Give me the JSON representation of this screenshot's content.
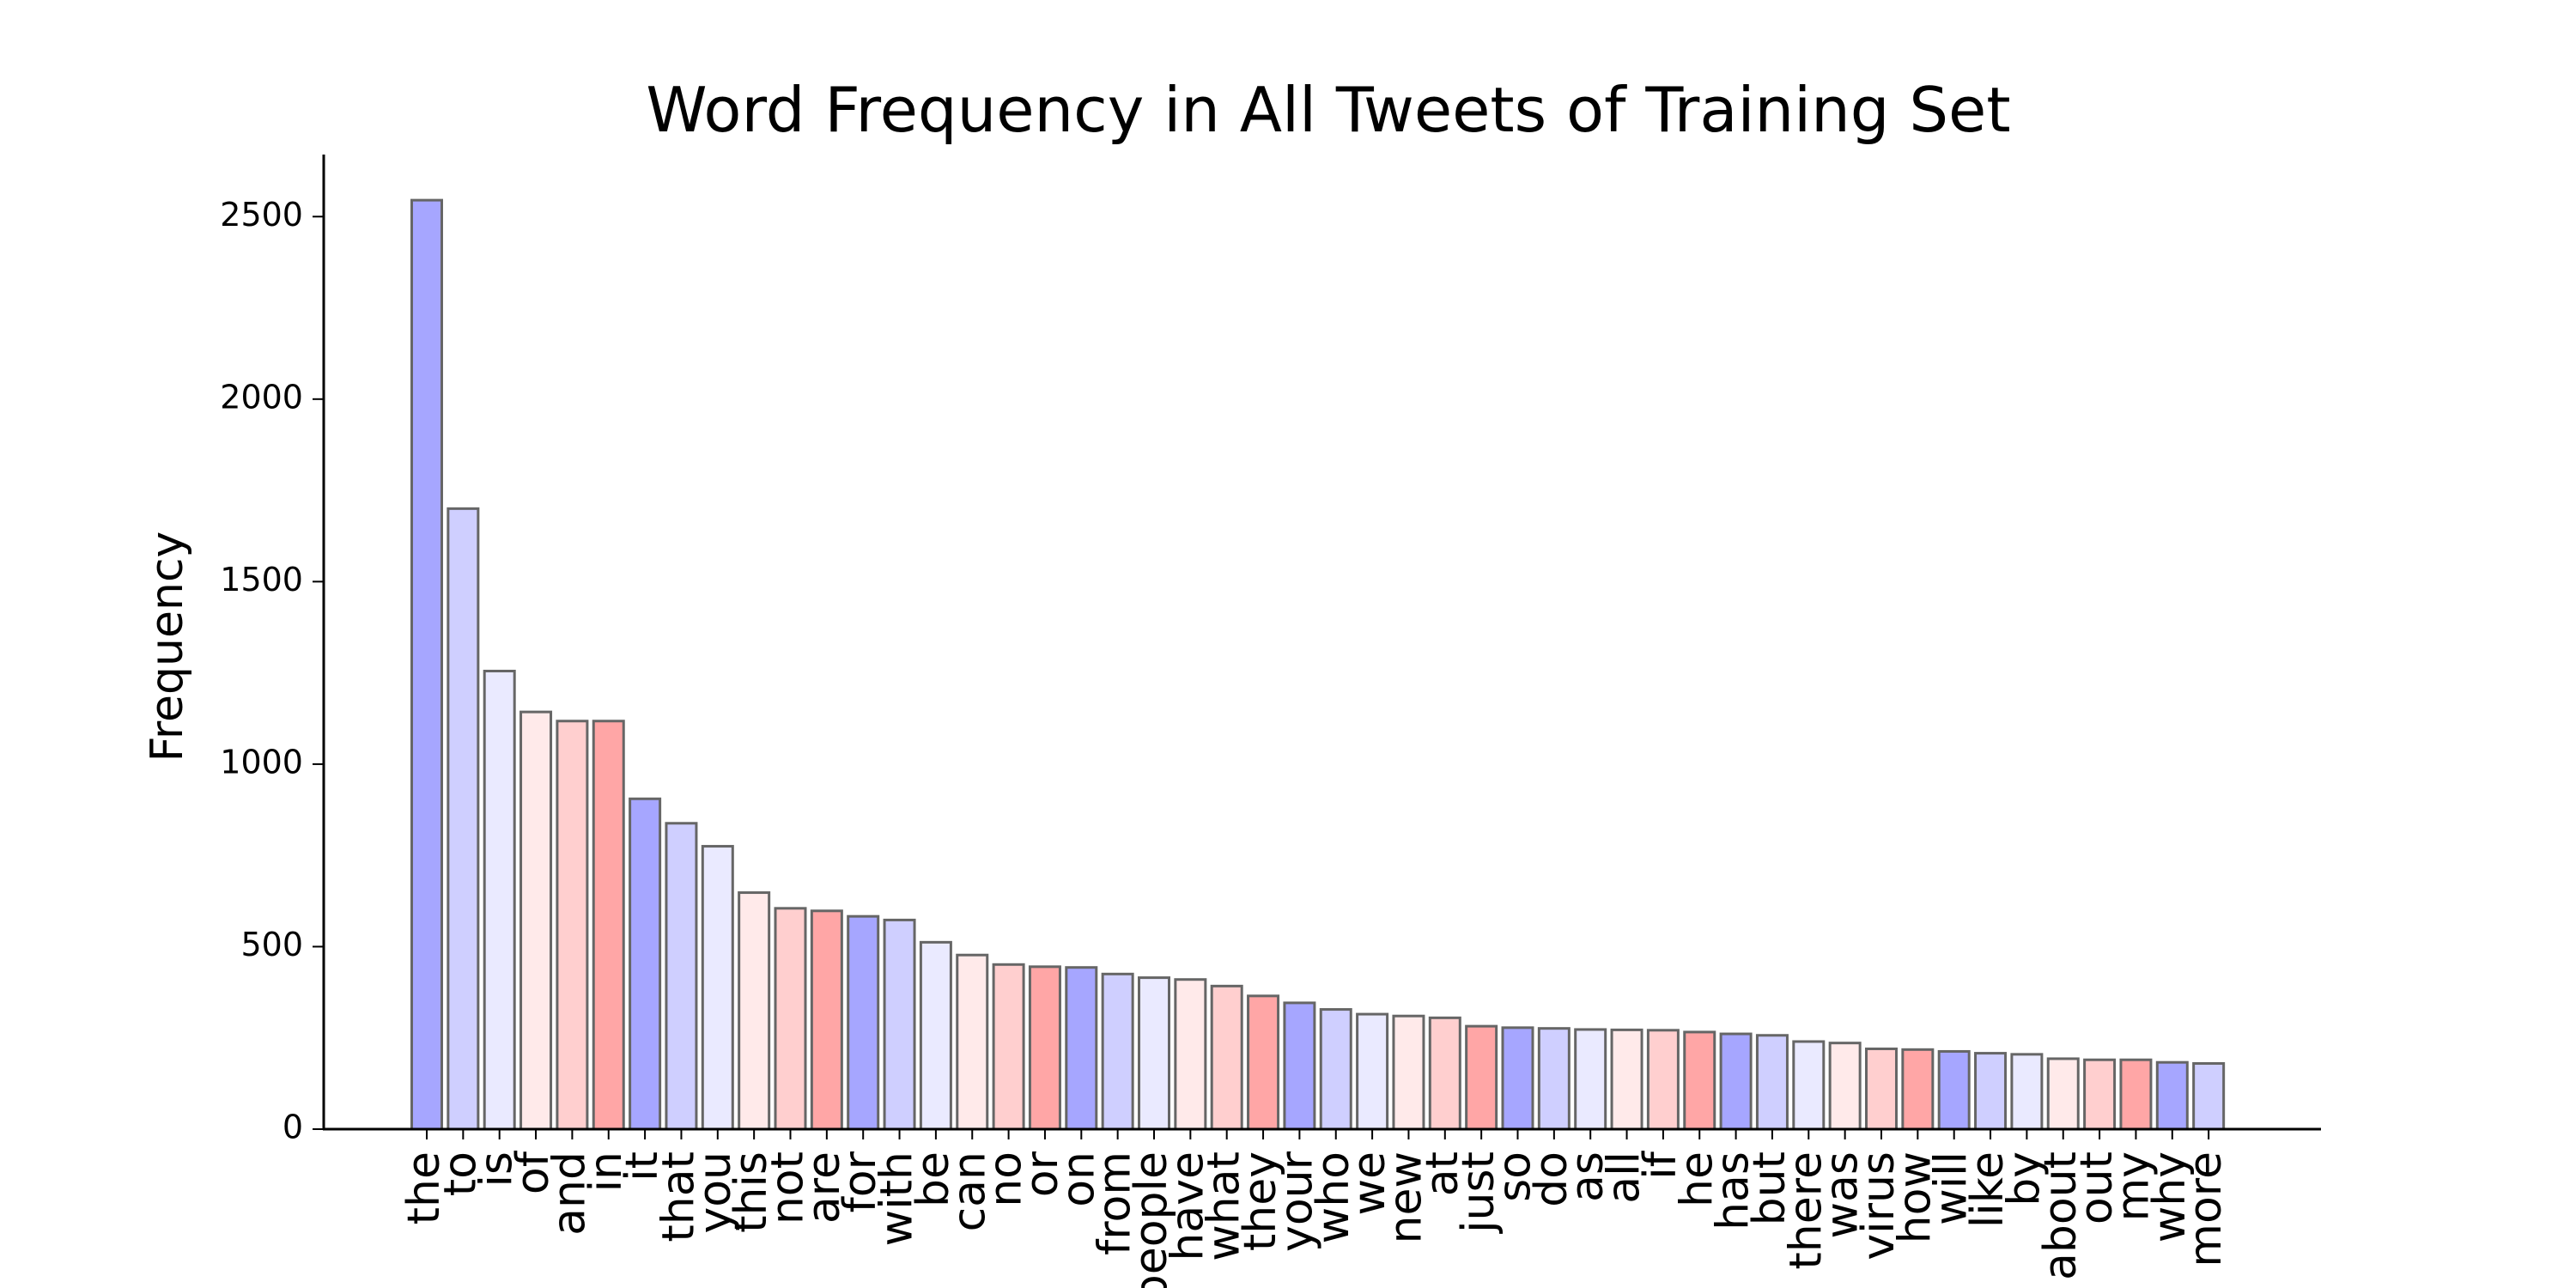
{
  "chart_data": {
    "type": "bar",
    "title": "Word Frequency in All Tweets of Training Set",
    "xlabel": "",
    "ylabel": "Frequency",
    "ylim": [
      0,
      2670
    ],
    "yticks": [
      0,
      500,
      1000,
      1500,
      2000,
      2500
    ],
    "grid": false,
    "legend": "none",
    "bar_edge_color": "#666666",
    "palette": [
      "#a6a6ff",
      "#cfcfff",
      "#eaeaff",
      "#ffeaea",
      "#ffcfcf",
      "#ffa6a6"
    ],
    "categories": [
      "the",
      "to",
      "is",
      "of",
      "and",
      "in",
      "it",
      "that",
      "you",
      "this",
      "not",
      "are",
      "for",
      "with",
      "be",
      "can",
      "no",
      "or",
      "on",
      "from",
      "people",
      "have",
      "what",
      "they",
      "your",
      "who",
      "we",
      "new",
      "at",
      "just",
      "so",
      "do",
      "as",
      "all",
      "if",
      "he",
      "has",
      "but",
      "there",
      "was",
      "virus",
      "how",
      "will",
      "like",
      "by",
      "about",
      "out",
      "my",
      "why",
      "more"
    ],
    "values": [
      2545,
      1700,
      1255,
      1143,
      1118,
      1118,
      905,
      838,
      775,
      648,
      605,
      598,
      583,
      573,
      512,
      477,
      451,
      445,
      443,
      425,
      415,
      410,
      392,
      365,
      346,
      328,
      315,
      310,
      305,
      282,
      278,
      276,
      273,
      272,
      271,
      266,
      261,
      257,
      240,
      236,
      220,
      218,
      213,
      208,
      205,
      193,
      190,
      190,
      183,
      180
    ]
  }
}
